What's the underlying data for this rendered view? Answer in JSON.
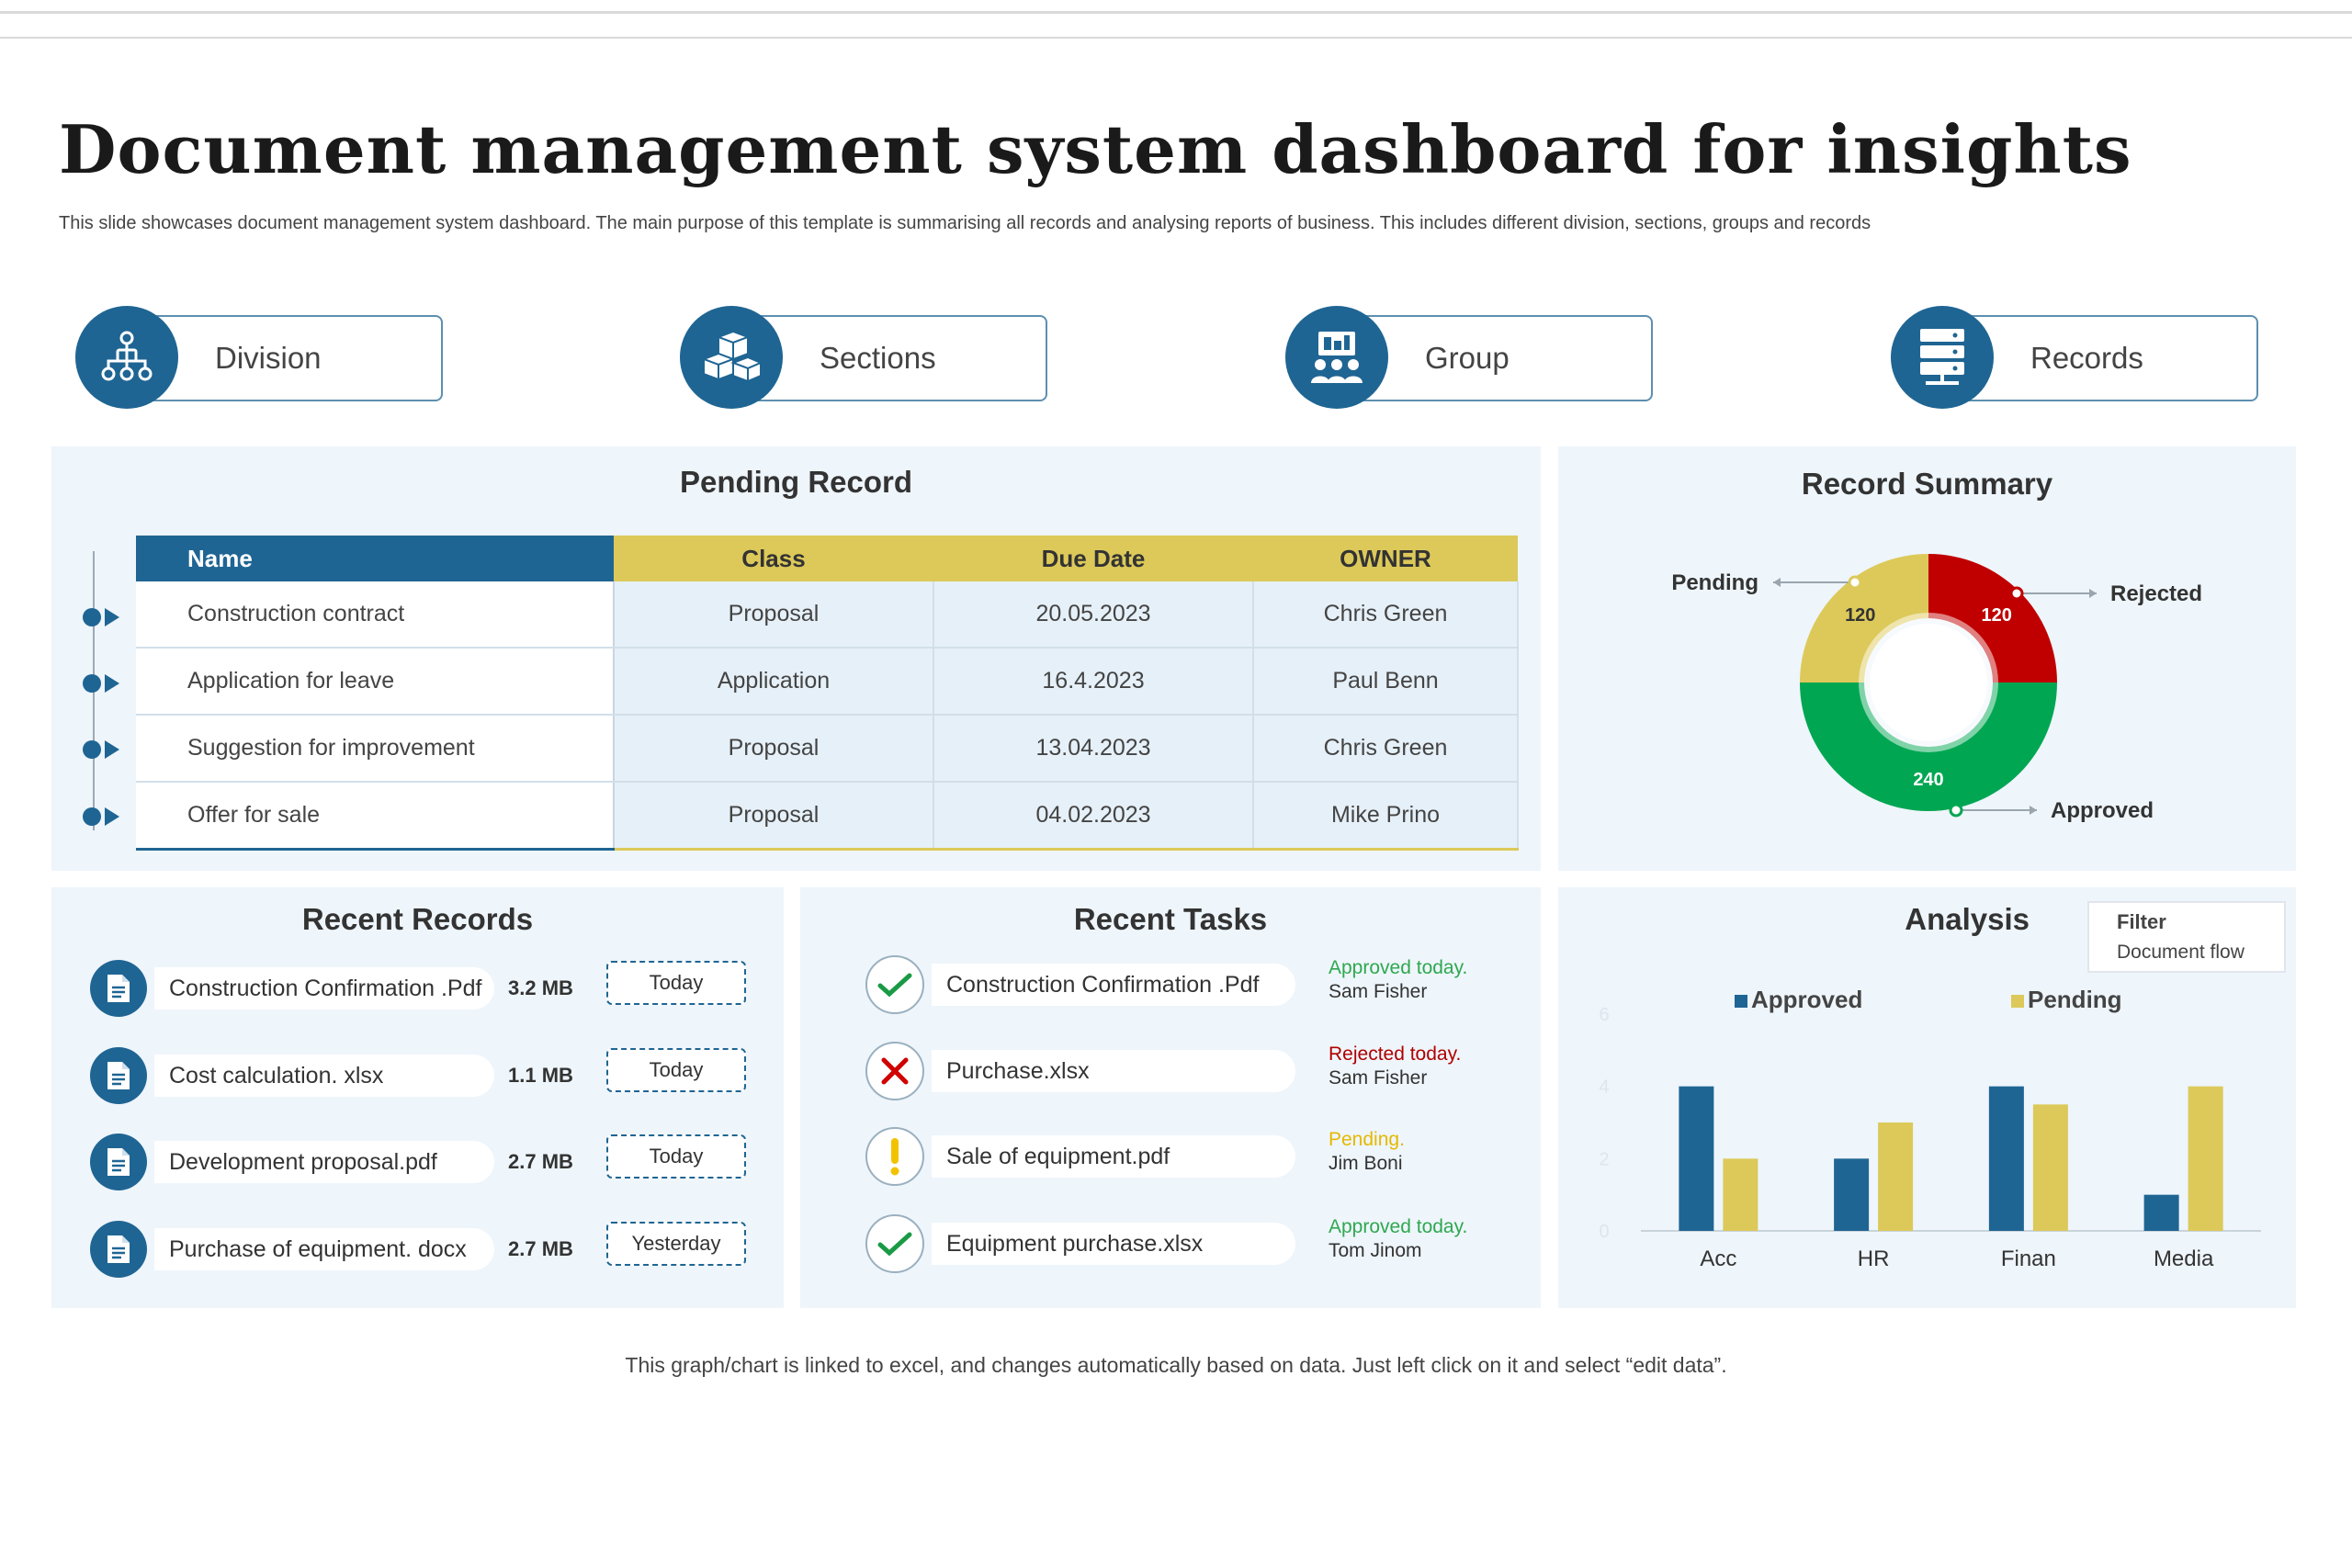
{
  "header": {
    "title": "Document management system dashboard for insights",
    "subtitle": "This slide showcases document management system dashboard. The main purpose of this template is summarising all records and analysing reports of business. This includes different division, sections, groups and records"
  },
  "categories": [
    {
      "label": "Division",
      "icon": "org-chart-icon"
    },
    {
      "label": "Sections",
      "icon": "boxes-icon"
    },
    {
      "label": "Group",
      "icon": "presentation-group-icon"
    },
    {
      "label": "Records",
      "icon": "server-icon"
    }
  ],
  "pending_record": {
    "title": "Pending Record",
    "columns": [
      "Name",
      "Class",
      "Due Date",
      "OWNER"
    ],
    "rows": [
      [
        "Construction contract",
        "Proposal",
        "20.05.2023",
        "Chris Green"
      ],
      [
        "Application for leave",
        "Application",
        "16.4.2023",
        "Paul Benn"
      ],
      [
        "Suggestion for improvement",
        "Proposal",
        "13.04.2023",
        "Chris Green"
      ],
      [
        "Offer for sale",
        "Proposal",
        "04.02.2023",
        "Mike Prino"
      ]
    ]
  },
  "record_summary": {
    "title": "Record Summary",
    "segments": [
      {
        "label": "Pending",
        "value": 120,
        "color": "#dcc959"
      },
      {
        "label": "Rejected",
        "value": 120,
        "color": "#c00000"
      },
      {
        "label": "Approved",
        "value": 240,
        "color": "#00a651"
      }
    ]
  },
  "recent_records": {
    "title": "Recent Records",
    "items": [
      {
        "name": "Construction Confirmation .Pdf",
        "size": "3.2 MB",
        "date": "Today"
      },
      {
        "name": "Cost calculation. xlsx",
        "size": "1.1 MB",
        "date": "Today"
      },
      {
        "name": "Development proposal.pdf",
        "size": "2.7 MB",
        "date": "Today"
      },
      {
        "name": "Purchase of equipment. docx",
        "size": "2.7 MB",
        "date": "Yesterday"
      }
    ]
  },
  "recent_tasks": {
    "title": "Recent Tasks",
    "items": [
      {
        "name": "Construction Confirmation .Pdf",
        "status": "Approved today.",
        "person": "Sam Fisher",
        "kind": "approved",
        "status_color": "#2fa84f"
      },
      {
        "name": "Purchase.xlsx",
        "status": "Rejected today.",
        "person": "Sam Fisher",
        "kind": "rejected",
        "status_color": "#b00000"
      },
      {
        "name": "Sale of equipment.pdf",
        "status": "Pending.",
        "person": "Jim Boni",
        "kind": "pending",
        "status_color": "#e6b800"
      },
      {
        "name": "Equipment purchase.xlsx",
        "status": "Approved today.",
        "person": "Tom Jinom",
        "kind": "approved",
        "status_color": "#2fa84f"
      }
    ]
  },
  "analysis": {
    "title": "Analysis",
    "filter_label": "Filter",
    "filter_value": "Document flow"
  },
  "chart_data": {
    "type": "bar",
    "categories": [
      "Acc",
      "HR",
      "Finan",
      "Media"
    ],
    "series": [
      {
        "name": "Approved",
        "values": [
          4,
          2,
          4,
          1
        ],
        "color": "#1f6593"
      },
      {
        "name": "Pending",
        "values": [
          2,
          3,
          3.5,
          4
        ],
        "color": "#dcc959"
      }
    ],
    "y_ticks": [
      "0",
      "2",
      "4",
      "6"
    ],
    "ylim": [
      0,
      6
    ],
    "legend": "top"
  },
  "footer": {
    "note": "This graph/chart is linked to excel, and changes automatically based on data. Just left click on it and select “edit data”."
  }
}
